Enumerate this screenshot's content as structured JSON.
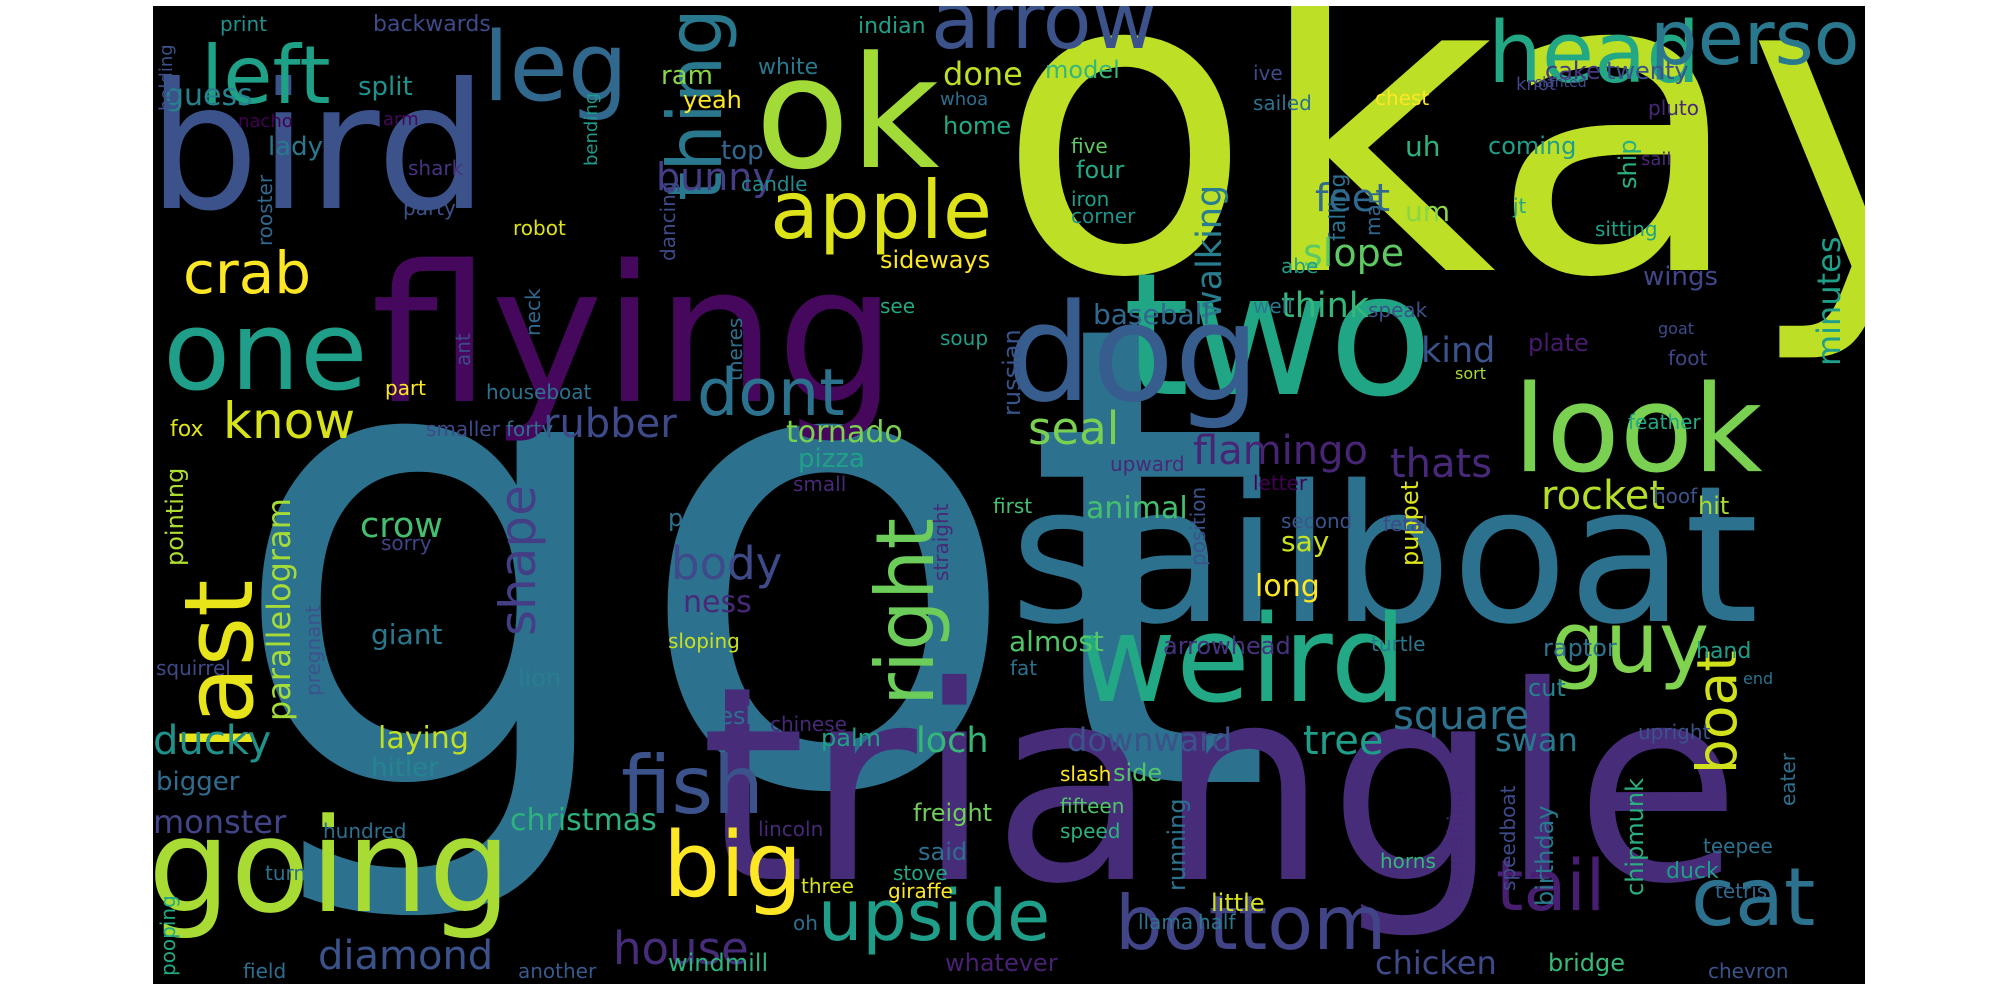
{
  "words": [
    {
      "text": "got",
      "color": "#2c728e"
    },
    {
      "text": "okay",
      "color": "#bddf26"
    },
    {
      "text": "triangle",
      "color": "#472c7a"
    },
    {
      "text": "sailboat",
      "color": "#2c728e"
    },
    {
      "text": "flying",
      "color": "#46085c"
    },
    {
      "text": "bird",
      "color": "#3b528b"
    },
    {
      "text": "two",
      "color": "#21a685"
    },
    {
      "text": "ok",
      "color": "#a2da37"
    },
    {
      "text": "dog",
      "color": "#365d8d"
    },
    {
      "text": "going",
      "color": "#a8db34"
    },
    {
      "text": "weird",
      "color": "#22a884"
    },
    {
      "text": "look",
      "color": "#7ad151"
    },
    {
      "text": "one",
      "color": "#1f9e89"
    },
    {
      "text": "arrow",
      "color": "#3b528b"
    },
    {
      "text": "last",
      "color": "#e7e419"
    },
    {
      "text": "leg",
      "color": "#31688e"
    },
    {
      "text": "head",
      "color": "#22a884"
    },
    {
      "text": "person",
      "color": "#2a788e"
    },
    {
      "text": "left",
      "color": "#1fa187"
    },
    {
      "text": "bottom",
      "color": "#414487"
    },
    {
      "text": "upside",
      "color": "#1f9e89"
    },
    {
      "text": "big",
      "color": "#fde725"
    },
    {
      "text": "apple",
      "color": "#dde318"
    },
    {
      "text": "fish",
      "color": "#3b528b"
    },
    {
      "text": "cat",
      "color": "#2c728e"
    },
    {
      "text": "guy",
      "color": "#7fd34e"
    },
    {
      "text": "tail",
      "color": "#481f70"
    },
    {
      "text": "right",
      "color": "#6ccd5a"
    },
    {
      "text": "thing",
      "color": "#2a788e"
    },
    {
      "text": "dont",
      "color": "#2c728e"
    },
    {
      "text": "crab",
      "color": "#fde725"
    },
    {
      "text": "know",
      "color": "#d8e219"
    },
    {
      "text": "boat",
      "color": "#d0e11c"
    },
    {
      "text": "shape",
      "color": "#433e85"
    },
    {
      "text": "rocket",
      "color": "#b5de2b"
    },
    {
      "text": "body",
      "color": "#3e4a89"
    },
    {
      "text": "rubber",
      "color": "#3e4a89"
    },
    {
      "text": "diamond",
      "color": "#3b528b"
    },
    {
      "text": "house",
      "color": "#472c7a"
    },
    {
      "text": "ducky",
      "color": "#20928c"
    },
    {
      "text": "square",
      "color": "#2c728e"
    },
    {
      "text": "tree",
      "color": "#1f9e89"
    },
    {
      "text": "seal",
      "color": "#7ad151"
    },
    {
      "text": "flamingo",
      "color": "#482475"
    },
    {
      "text": "thats",
      "color": "#482878"
    },
    {
      "text": "slope",
      "color": "#5ec962"
    },
    {
      "text": "feet",
      "color": "#31688e"
    },
    {
      "text": "bunny",
      "color": "#433e85"
    },
    {
      "text": "think",
      "color": "#35b779"
    },
    {
      "text": "kind",
      "color": "#3b528b"
    },
    {
      "text": "loch",
      "color": "#35b779"
    },
    {
      "text": "walking",
      "color": "#287d8e"
    },
    {
      "text": "crow",
      "color": "#44bf70"
    },
    {
      "text": "parallelogram",
      "color": "#a5db36"
    },
    {
      "text": "monster",
      "color": "#414487"
    },
    {
      "text": "swan",
      "color": "#2a788e"
    },
    {
      "text": "chicken",
      "color": "#3e4a89"
    },
    {
      "text": "downward",
      "color": "#3b528b"
    },
    {
      "text": "minutes",
      "color": "#1f9e89"
    },
    {
      "text": "christmas",
      "color": "#2db27d"
    },
    {
      "text": "done",
      "color": "#bddf26"
    },
    {
      "text": "tornado",
      "color": "#7ad151"
    },
    {
      "text": "giant",
      "color": "#2a788e"
    },
    {
      "text": "guess",
      "color": "#26828e"
    },
    {
      "text": "ness",
      "color": "#482878"
    },
    {
      "text": "laying",
      "color": "#c2df23"
    },
    {
      "text": "baseball",
      "color": "#31688e"
    },
    {
      "text": "animal",
      "color": "#44bf70"
    },
    {
      "text": "almost",
      "color": "#52c569"
    },
    {
      "text": "pizza",
      "color": "#1fa187"
    },
    {
      "text": "hitler",
      "color": "#25848e"
    },
    {
      "text": "say",
      "color": "#cae11f"
    },
    {
      "text": "long",
      "color": "#fde725"
    },
    {
      "text": "uh",
      "color": "#2db27d"
    },
    {
      "text": "um",
      "color": "#8bd646"
    },
    {
      "text": "wings",
      "color": "#404688"
    },
    {
      "text": "bigger",
      "color": "#2f6c8e"
    },
    {
      "text": "lady",
      "color": "#2a788e"
    },
    {
      "text": "split",
      "color": "#21918c"
    },
    {
      "text": "ram",
      "color": "#89d548"
    },
    {
      "text": "top",
      "color": "#31688e"
    },
    {
      "text": "yeah",
      "color": "#fde725"
    },
    {
      "text": "white",
      "color": "#2a788e"
    },
    {
      "text": "model",
      "color": "#35b779"
    },
    {
      "text": "home",
      "color": "#22a884"
    },
    {
      "text": "four",
      "color": "#22a884"
    },
    {
      "text": "cake",
      "color": "#453781"
    },
    {
      "text": "twenty",
      "color": "#3b528b"
    },
    {
      "text": "coming",
      "color": "#1f9e89"
    },
    {
      "text": "ship",
      "color": "#2ab07f"
    },
    {
      "text": "sideways",
      "color": "#fde725"
    },
    {
      "text": "russian",
      "color": "#39558c"
    },
    {
      "text": "plate",
      "color": "#481a6c"
    },
    {
      "text": "hit",
      "color": "#aadc32"
    },
    {
      "text": "puppet",
      "color": "#dde318"
    },
    {
      "text": "desk",
      "color": "#2d708e"
    },
    {
      "text": "palm",
      "color": "#1fa187"
    },
    {
      "text": "freight",
      "color": "#6ece58"
    },
    {
      "text": "said",
      "color": "#2e6e8e"
    },
    {
      "text": "side",
      "color": "#52c569"
    },
    {
      "text": "running",
      "color": "#2c728e"
    },
    {
      "text": "arrowhead",
      "color": "#46337e"
    },
    {
      "text": "raptor",
      "color": "#2c728e"
    },
    {
      "text": "hand",
      "color": "#1f9e89"
    },
    {
      "text": "cut",
      "color": "#26828e"
    },
    {
      "text": "chipmunk",
      "color": "#2ab07f"
    },
    {
      "text": "birthday",
      "color": "#297a8e"
    },
    {
      "text": "duck",
      "color": "#1f9e89"
    },
    {
      "text": "windmill",
      "color": "#2db27d"
    },
    {
      "text": "bridge",
      "color": "#38b977"
    },
    {
      "text": "whatever",
      "color": "#482173"
    },
    {
      "text": "little",
      "color": "#d5e21a"
    },
    {
      "text": "pointing",
      "color": "#addc30"
    },
    {
      "text": "fox",
      "color": "#dde318"
    },
    {
      "text": "lion",
      "color": "#287d8e"
    },
    {
      "text": "pot",
      "color": "#2d708e"
    },
    {
      "text": "backwards",
      "color": "#3e4a89"
    },
    {
      "text": "indian",
      "color": "#1fa187"
    },
    {
      "text": "print",
      "color": "#21918c"
    },
    {
      "text": "holding",
      "color": "#3b528b"
    },
    {
      "text": "nacho",
      "color": "#440154"
    },
    {
      "text": "arm",
      "color": "#46085c"
    },
    {
      "text": "bending",
      "color": "#1e9b8a"
    },
    {
      "text": "whoa",
      "color": "#2e6e8e"
    },
    {
      "text": "ive",
      "color": "#3e4a89"
    },
    {
      "text": "knot",
      "color": "#404688"
    },
    {
      "text": "slanted",
      "color": "#3e4a89"
    },
    {
      "text": "pluto",
      "color": "#482878"
    },
    {
      "text": "chest",
      "color": "#fde725"
    },
    {
      "text": "sailed",
      "color": "#2c728e"
    },
    {
      "text": "five",
      "color": "#5ec962"
    },
    {
      "text": "iron",
      "color": "#1f9e89"
    },
    {
      "text": "corner",
      "color": "#20928c"
    },
    {
      "text": "candle",
      "color": "#238a8d"
    },
    {
      "text": "dancing",
      "color": "#3e4a89"
    },
    {
      "text": "rooster",
      "color": "#31688e"
    },
    {
      "text": "shark",
      "color": "#46327e"
    },
    {
      "text": "party",
      "color": "#3b528b"
    },
    {
      "text": "robot",
      "color": "#dde318"
    },
    {
      "text": "man",
      "color": "#31688e"
    },
    {
      "text": "falling",
      "color": "#2d708e"
    },
    {
      "text": "jt",
      "color": "#22a884"
    },
    {
      "text": "sitting",
      "color": "#1fa187"
    },
    {
      "text": "sail",
      "color": "#482878"
    },
    {
      "text": "abe",
      "color": "#1f9e89"
    },
    {
      "text": "ant",
      "color": "#3e4a89"
    },
    {
      "text": "neck",
      "color": "#31688e"
    },
    {
      "text": "theres",
      "color": "#2e6e8e"
    },
    {
      "text": "see",
      "color": "#22a884"
    },
    {
      "text": "soup",
      "color": "#1f9e89"
    },
    {
      "text": "well",
      "color": "#2a788e"
    },
    {
      "text": "speak",
      "color": "#3b528b"
    },
    {
      "text": "goat",
      "color": "#3e4a89"
    },
    {
      "text": "foot",
      "color": "#414487"
    },
    {
      "text": "sort",
      "color": "#a8db34"
    },
    {
      "text": "feather",
      "color": "#22a884"
    },
    {
      "text": "part",
      "color": "#fde725"
    },
    {
      "text": "houseboat",
      "color": "#2c728e"
    },
    {
      "text": "smaller",
      "color": "#3e4a89"
    },
    {
      "text": "forty",
      "color": "#2d708e"
    },
    {
      "text": "small",
      "color": "#482878"
    },
    {
      "text": "upward",
      "color": "#482878"
    },
    {
      "text": "letter",
      "color": "#440154"
    },
    {
      "text": "first",
      "color": "#44bf70"
    },
    {
      "text": "second",
      "color": "#39558c"
    },
    {
      "text": "fetal",
      "color": "#3e4a89"
    },
    {
      "text": "hoof",
      "color": "#3b528b"
    },
    {
      "text": "sorry",
      "color": "#414487"
    },
    {
      "text": "straight",
      "color": "#482878"
    },
    {
      "text": "position",
      "color": "#3b528b"
    },
    {
      "text": "turtle",
      "color": "#2a788e"
    },
    {
      "text": "sloping",
      "color": "#c8e020"
    },
    {
      "text": "pregnant",
      "color": "#3b528b"
    },
    {
      "text": "squirrel",
      "color": "#3e4a89"
    },
    {
      "text": "fat",
      "color": "#2d708e"
    },
    {
      "text": "chinese",
      "color": "#482878"
    },
    {
      "text": "end",
      "color": "#2c728e"
    },
    {
      "text": "upright",
      "color": "#3b528b"
    },
    {
      "text": "eater",
      "color": "#2d708e"
    },
    {
      "text": "slash",
      "color": "#fde725"
    },
    {
      "text": "fifteen",
      "color": "#52c569"
    },
    {
      "text": "speed",
      "color": "#2db27d"
    },
    {
      "text": "something",
      "color": "#482878"
    },
    {
      "text": "speedboat",
      "color": "#3e4a89"
    },
    {
      "text": "teepee",
      "color": "#2c728e"
    },
    {
      "text": "tetris",
      "color": "#31688e"
    },
    {
      "text": "chevron",
      "color": "#3b528b"
    },
    {
      "text": "horns",
      "color": "#35b779"
    },
    {
      "text": "lincoln",
      "color": "#482878"
    },
    {
      "text": "stove",
      "color": "#22a884"
    },
    {
      "text": "giraffe",
      "color": "#fde725"
    },
    {
      "text": "three",
      "color": "#d8e219"
    },
    {
      "text": "oh",
      "color": "#2e6e8e"
    },
    {
      "text": "llama",
      "color": "#2c728e"
    },
    {
      "text": "half",
      "color": "#2a788e"
    },
    {
      "text": "another",
      "color": "#38598c"
    },
    {
      "text": "field",
      "color": "#2e6e8e"
    },
    {
      "text": "pooping",
      "color": "#22a884"
    },
    {
      "text": "turn",
      "color": "#2c728e"
    },
    {
      "text": "hundred",
      "color": "#2e6e8e"
    }
  ]
}
